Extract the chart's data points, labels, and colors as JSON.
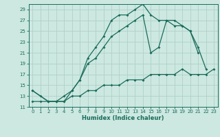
{
  "title": "",
  "xlabel": "Humidex (Indice chaleur)",
  "bg_color": "#cce8e0",
  "grid_color": "#aaccC4",
  "line_color": "#1a6b5a",
  "xlim": [
    -0.5,
    23.5
  ],
  "ylim": [
    11,
    30
  ],
  "yticks": [
    11,
    13,
    15,
    17,
    19,
    21,
    23,
    25,
    27,
    29
  ],
  "xticks": [
    0,
    1,
    2,
    3,
    4,
    5,
    6,
    7,
    8,
    9,
    10,
    11,
    12,
    13,
    14,
    15,
    16,
    17,
    18,
    19,
    20,
    21,
    22,
    23
  ],
  "series1_x": [
    0,
    1,
    2,
    3,
    4,
    5,
    6,
    7,
    8,
    9,
    10,
    11,
    12,
    13,
    14,
    15,
    16,
    17,
    18,
    19,
    20,
    21
  ],
  "series1_y": [
    14,
    13,
    12,
    12,
    12,
    14,
    16,
    20,
    22,
    24,
    27,
    28,
    28,
    29,
    30,
    28,
    27,
    27,
    26,
    26,
    25,
    21
  ],
  "series2_x": [
    0,
    2,
    3,
    4,
    5,
    6,
    7,
    8,
    9,
    10,
    11,
    12,
    13,
    14,
    15,
    16,
    17,
    18,
    19,
    20,
    21,
    22
  ],
  "series2_y": [
    14,
    12,
    12,
    13,
    14,
    16,
    19,
    20,
    22,
    24,
    25,
    26,
    27,
    28,
    21,
    22,
    27,
    27,
    26,
    25,
    22,
    18
  ],
  "series3_x": [
    0,
    1,
    2,
    3,
    4,
    5,
    6,
    7,
    8,
    9,
    10,
    11,
    12,
    13,
    14,
    15,
    16,
    17,
    18,
    19,
    20,
    21,
    22,
    23
  ],
  "series3_y": [
    12,
    12,
    12,
    12,
    12,
    13,
    13,
    14,
    14,
    15,
    15,
    15,
    16,
    16,
    16,
    17,
    17,
    17,
    17,
    18,
    17,
    17,
    17,
    18
  ],
  "tick_fontsize": 5,
  "xlabel_fontsize": 6
}
